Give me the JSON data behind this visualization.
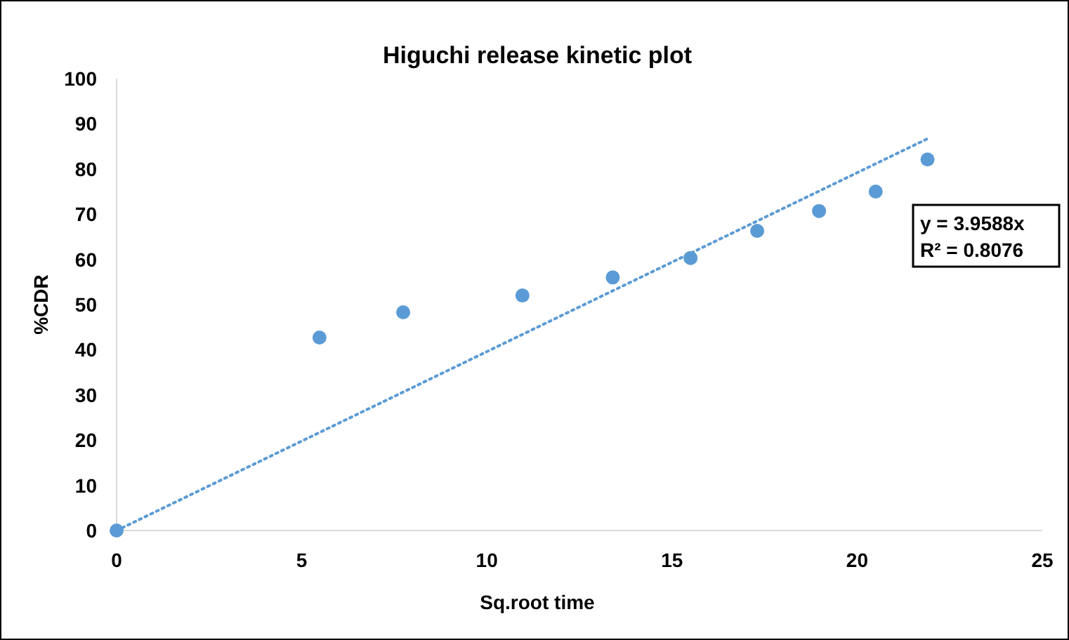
{
  "chart_data": {
    "type": "scatter",
    "title": "Higuchi release kinetic plot",
    "xlabel": "Sq.root time",
    "ylabel": "%CDR",
    "xlim": [
      0,
      25
    ],
    "xticks": [
      0,
      5,
      10,
      15,
      20,
      25
    ],
    "ylim": [
      0,
      100
    ],
    "yticks": [
      0,
      10,
      20,
      30,
      40,
      50,
      60,
      70,
      80,
      90,
      100
    ],
    "grid": false,
    "marker": "circle",
    "series": [
      {
        "color": "#5b9bd5",
        "x": [
          0,
          5.48,
          7.74,
          10.96,
          13.4,
          15.5,
          17.3,
          18.97,
          20.5,
          21.9
        ],
        "values": [
          0,
          42.7,
          48.3,
          52.0,
          56.0,
          60.3,
          66.3,
          70.7,
          75.0,
          82.1
        ]
      },
      {
        "type": "line",
        "color": "#5b9bd5",
        "line_style": "dotted",
        "marker": "none",
        "x": [
          0,
          21.9
        ],
        "values": [
          0,
          86.7
        ]
      }
    ],
    "annotations": [
      "y = 3.9588x\nR² = 0.8076"
    ]
  }
}
